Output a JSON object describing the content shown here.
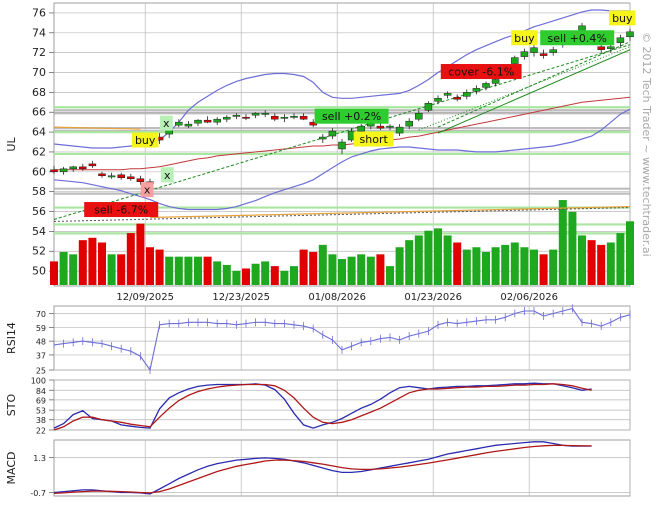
{
  "watermark": "© 2012 Tech Trader ~ www.techtrader.ai",
  "colors": {
    "up": "#1fa81f",
    "down": "#e00000",
    "grid": "#b8b8b8",
    "bollinger": "#6e6ed8",
    "ma_red": "#c23a3a",
    "ma_orange": "#e5a23a",
    "trend_green": "#1b8a1b",
    "support_green": "#a9e6a0",
    "resistance_gray": "#a8a8a8",
    "tag_red": "#e81010",
    "tag_green": "#2ecc2e",
    "tag_yellow": "#f5f51c",
    "tag_pink": "#f5a0a0",
    "tag_lightgreen": "#b8f0b8",
    "line_blue": "#2b2bb0",
    "line_red": "#b01818"
  },
  "chart_data": [
    {
      "type": "candlestick",
      "ylabel": "UL",
      "ylim": [
        48.5,
        77
      ],
      "yticks": [
        50,
        52,
        54,
        56,
        58,
        60,
        62,
        64,
        66,
        68,
        70,
        72,
        74,
        76
      ],
      "xlim": [
        0,
        60
      ],
      "x_tick_positions": [
        9.5,
        19.5,
        29.5,
        39.5,
        49.5,
        60
      ],
      "date_labels": [
        {
          "label": "12/09/2025",
          "x": 9.5
        },
        {
          "label": "12/23/2025",
          "x": 19.5
        },
        {
          "label": "01/08/2026",
          "x": 29.5
        },
        {
          "label": "01/23/2026",
          "x": 39.5
        },
        {
          "label": "02/06/2026",
          "x": 49.5
        }
      ],
      "ohlc": [
        [
          60.2,
          60.6,
          59.8,
          60.0
        ],
        [
          60.0,
          60.5,
          59.7,
          60.3
        ],
        [
          60.3,
          60.6,
          60.0,
          60.5
        ],
        [
          60.5,
          60.8,
          60.1,
          60.3
        ],
        [
          60.8,
          61.1,
          60.4,
          60.6
        ],
        [
          59.8,
          60.0,
          59.4,
          59.6
        ],
        [
          59.6,
          59.9,
          59.3,
          59.6
        ],
        [
          59.7,
          59.9,
          59.2,
          59.4
        ],
        [
          59.5,
          59.8,
          59.1,
          59.3
        ],
        [
          59.3,
          59.6,
          58.7,
          59.0
        ],
        [
          59.0,
          59.3,
          58.5,
          58.8
        ],
        [
          63.5,
          63.9,
          62.8,
          63.2
        ],
        [
          63.8,
          64.6,
          63.4,
          64.2
        ],
        [
          64.7,
          65.3,
          64.5,
          65.0
        ],
        [
          64.6,
          65.1,
          64.4,
          64.8
        ],
        [
          64.9,
          65.3,
          64.6,
          65.2
        ],
        [
          65.2,
          65.6,
          64.9,
          65.0
        ],
        [
          65.0,
          65.5,
          64.7,
          65.3
        ],
        [
          65.3,
          65.7,
          65.0,
          65.5
        ],
        [
          65.6,
          65.9,
          65.3,
          65.7
        ],
        [
          65.5,
          65.8,
          65.2,
          65.4
        ],
        [
          65.7,
          66.0,
          65.4,
          65.9
        ],
        [
          65.8,
          66.2,
          65.5,
          65.9
        ],
        [
          65.6,
          65.9,
          65.1,
          65.3
        ],
        [
          65.4,
          65.8,
          65.0,
          65.5
        ],
        [
          65.5,
          65.9,
          65.3,
          65.6
        ],
        [
          65.6,
          65.9,
          65.2,
          65.3
        ],
        [
          65.0,
          65.3,
          64.5,
          64.7
        ],
        [
          63.3,
          63.8,
          62.9,
          63.5
        ],
        [
          63.6,
          64.4,
          63.3,
          64.1
        ],
        [
          62.3,
          63.3,
          61.8,
          63.0
        ],
        [
          63.2,
          64.4,
          63.0,
          64.1
        ],
        [
          64.1,
          64.8,
          63.9,
          64.6
        ],
        [
          64.6,
          65.1,
          64.3,
          64.9
        ],
        [
          64.6,
          64.9,
          64.2,
          64.4
        ],
        [
          64.5,
          64.8,
          64.2,
          64.6
        ],
        [
          63.9,
          64.8,
          63.6,
          64.5
        ],
        [
          64.6,
          65.4,
          64.3,
          65.1
        ],
        [
          65.3,
          66.2,
          65.1,
          65.9
        ],
        [
          66.2,
          67.1,
          66.0,
          66.9
        ],
        [
          67.1,
          67.7,
          66.8,
          67.4
        ],
        [
          67.7,
          68.1,
          67.4,
          67.9
        ],
        [
          67.5,
          67.8,
          67.1,
          67.3
        ],
        [
          67.6,
          68.3,
          67.3,
          68.0
        ],
        [
          68.1,
          68.7,
          67.8,
          68.4
        ],
        [
          68.5,
          69.1,
          68.2,
          68.9
        ],
        [
          68.9,
          69.5,
          68.6,
          69.3
        ],
        [
          69.7,
          70.6,
          69.4,
          70.3
        ],
        [
          70.9,
          71.7,
          70.5,
          71.5
        ],
        [
          71.6,
          72.4,
          71.3,
          72.1
        ],
        [
          72.0,
          72.8,
          71.6,
          72.5
        ],
        [
          71.9,
          72.3,
          71.4,
          71.7
        ],
        [
          72.0,
          72.6,
          71.7,
          72.3
        ],
        [
          72.8,
          73.6,
          72.5,
          73.3
        ],
        [
          73.3,
          74.2,
          72.9,
          73.9
        ],
        [
          74.1,
          75.0,
          73.8,
          74.7
        ],
        [
          73.6,
          74.0,
          72.9,
          73.2
        ],
        [
          72.6,
          72.9,
          72.0,
          72.3
        ],
        [
          72.4,
          72.9,
          72.0,
          72.6
        ],
        [
          73.0,
          73.8,
          72.6,
          73.5
        ],
        [
          73.6,
          74.4,
          73.2,
          74.1
        ]
      ],
      "volume": [
        0.2,
        0.28,
        0.26,
        0.38,
        0.4,
        0.36,
        0.26,
        0.26,
        0.44,
        0.52,
        0.32,
        0.3,
        0.24,
        0.24,
        0.24,
        0.24,
        0.24,
        0.2,
        0.17,
        0.12,
        0.14,
        0.18,
        0.2,
        0.16,
        0.12,
        0.16,
        0.3,
        0.28,
        0.34,
        0.26,
        0.22,
        0.24,
        0.26,
        0.24,
        0.26,
        0.16,
        0.32,
        0.38,
        0.42,
        0.46,
        0.48,
        0.42,
        0.36,
        0.3,
        0.32,
        0.28,
        0.32,
        0.34,
        0.36,
        0.32,
        0.3,
        0.26,
        0.3,
        0.72,
        0.62,
        0.42,
        0.38,
        0.34,
        0.36,
        0.44,
        0.54
      ],
      "bollinger_upper": [
        62.8,
        62.7,
        62.6,
        62.5,
        62.4,
        62.4,
        62.4,
        62.5,
        62.6,
        62.7,
        62.6,
        63.2,
        64.0,
        65.0,
        66.2,
        67.0,
        67.6,
        68.2,
        68.7,
        69.1,
        69.4,
        69.6,
        69.8,
        69.9,
        69.9,
        69.8,
        69.6,
        69.0,
        68.0,
        67.5,
        67.4,
        67.4,
        67.5,
        67.6,
        67.7,
        67.8,
        67.9,
        68.2,
        68.7,
        69.3,
        70.0,
        70.6,
        71.2,
        71.8,
        72.3,
        72.7,
        73.1,
        73.5,
        73.8,
        74.2,
        74.6,
        74.9,
        75.2,
        75.5,
        75.8,
        76.1,
        76.3,
        76.3,
        76.2,
        76.2,
        76.2
      ],
      "bollinger_lower": [
        59.2,
        59.1,
        59.0,
        58.9,
        58.7,
        58.5,
        58.3,
        58.1,
        57.8,
        57.5,
        57.2,
        56.8,
        56.5,
        56.3,
        56.2,
        56.2,
        56.2,
        56.2,
        56.3,
        56.5,
        56.8,
        57.1,
        57.5,
        57.9,
        58.2,
        58.5,
        58.8,
        59.2,
        59.8,
        60.4,
        61.0,
        61.5,
        61.8,
        62.1,
        62.3,
        62.4,
        62.5,
        62.5,
        62.4,
        62.3,
        62.2,
        62.2,
        62.2,
        62.1,
        62.0,
        62.0,
        62.0,
        62.1,
        62.2,
        62.3,
        62.4,
        62.5,
        62.6,
        62.8,
        63.0,
        63.3,
        63.6,
        64.2,
        65.0,
        65.8,
        66.3
      ],
      "ma_red": [
        60.2,
        60.2,
        60.2,
        60.2,
        60.2,
        60.2,
        60.2,
        60.2,
        60.3,
        60.3,
        60.4,
        60.5,
        60.7,
        60.9,
        61.1,
        61.3,
        61.4,
        61.6,
        61.7,
        61.8,
        61.9,
        62.0,
        62.1,
        62.2,
        62.3,
        62.4,
        62.5,
        62.6,
        62.6,
        62.7,
        62.7,
        62.8,
        62.9,
        63.0,
        63.1,
        63.2,
        63.3,
        63.5,
        63.6,
        63.8,
        64.0,
        64.2,
        64.4,
        64.6,
        64.8,
        65.0,
        65.2,
        65.4,
        65.6,
        65.8,
        66.0,
        66.2,
        66.4,
        66.6,
        66.8,
        67.0,
        67.1,
        67.2,
        67.3,
        67.4,
        67.5
      ],
      "trend_lines": [
        {
          "x1": 0,
          "y1": 55.2,
          "x2": 60,
          "y2": 72.8,
          "style": "dashed"
        },
        {
          "x1": 40,
          "y1": 64.5,
          "x2": 60,
          "y2": 73.1,
          "style": "dashed"
        },
        {
          "x1": 40,
          "y1": 63.9,
          "x2": 60,
          "y2": 72.3,
          "style": "solid"
        },
        {
          "x1": 38,
          "y1": 64.2,
          "x2": 60,
          "y2": 72.6,
          "style": "dotted"
        },
        {
          "x1": 0,
          "y1": 55.0,
          "x2": 60,
          "y2": 56.4,
          "style": "dashed_gray"
        }
      ],
      "ma_orange_segments": [
        {
          "x1": 0,
          "y1": 64.5,
          "x2": 9,
          "y2": 64.3
        },
        {
          "x1": 10,
          "y1": 55.4,
          "x2": 60,
          "y2": 56.5
        }
      ],
      "support_levels": [
        53.8,
        54.7,
        56.4,
        61.8,
        64.0,
        66.5
      ],
      "resistance_levels": [
        57.8,
        58.3,
        64.1,
        64.4,
        65.9,
        66.2
      ],
      "annotations": [
        {
          "text": "buy",
          "x": 9.5,
          "y": 63.2,
          "kind": "yellow"
        },
        {
          "text": "x",
          "x": 11.7,
          "y": 64.9,
          "kind": "lightgreen"
        },
        {
          "text": "x",
          "x": 9.7,
          "y": 58.2,
          "kind": "pink"
        },
        {
          "text": "x",
          "x": 11.8,
          "y": 59.7,
          "kind": "lightgreen"
        },
        {
          "text": "sell -6.7%",
          "x": 7.0,
          "y": 56.2,
          "kind": "red"
        },
        {
          "text": "sell +0.2%",
          "x": 31.0,
          "y": 65.6,
          "kind": "green"
        },
        {
          "text": "short",
          "x": 33.3,
          "y": 63.3,
          "kind": "yellow"
        },
        {
          "text": "cover -6.1%",
          "x": 44.5,
          "y": 70.1,
          "kind": "red"
        },
        {
          "text": "buy",
          "x": 49.0,
          "y": 73.5,
          "kind": "yellow"
        },
        {
          "text": "sell +0.4%",
          "x": 54.5,
          "y": 73.5,
          "kind": "green"
        },
        {
          "text": "buy",
          "x": 59.2,
          "y": 75.5,
          "kind": "yellow"
        }
      ]
    },
    {
      "type": "line",
      "ylabel": "RSI14",
      "ylim": [
        25,
        76
      ],
      "yticks": [
        25,
        37,
        48,
        59,
        70
      ],
      "values": [
        45,
        46,
        47,
        48,
        47,
        46,
        44,
        42,
        40,
        36,
        25,
        61,
        62,
        62,
        63,
        63,
        63,
        62,
        62,
        61,
        62,
        63,
        63,
        62,
        62,
        61,
        60,
        58,
        53,
        49,
        41,
        44,
        47,
        48,
        50,
        51,
        49,
        52,
        54,
        56,
        61,
        63,
        62,
        63,
        64,
        65,
        65,
        67,
        70,
        72,
        72,
        68,
        70,
        72,
        74,
        63,
        62,
        60,
        63,
        67,
        69
      ]
    },
    {
      "type": "line",
      "ylabel": "STO",
      "ylim": [
        22,
        100
      ],
      "yticks": [
        22,
        38,
        53,
        69,
        84,
        100
      ],
      "series": [
        {
          "color_key": "line_blue",
          "values": [
            25,
            32,
            46,
            52,
            40,
            38,
            36,
            30,
            28,
            26,
            25,
            55,
            72,
            80,
            86,
            90,
            92,
            93,
            93,
            93,
            93,
            94,
            92,
            85,
            70,
            48,
            30,
            25,
            30,
            34,
            40,
            48,
            56,
            62,
            70,
            80,
            88,
            90,
            88,
            86,
            88,
            89,
            90,
            90,
            91,
            91,
            92,
            93,
            94,
            94,
            95,
            94,
            94,
            91,
            88,
            84,
            86
          ]
        },
        {
          "color_key": "line_red",
          "values": [
            22,
            27,
            36,
            42,
            42,
            38,
            36,
            34,
            31,
            29,
            27,
            42,
            56,
            68,
            76,
            82,
            86,
            89,
            91,
            92,
            93,
            93,
            93,
            91,
            84,
            72,
            56,
            42,
            34,
            32,
            34,
            38,
            44,
            50,
            56,
            64,
            72,
            80,
            84,
            86,
            86,
            87,
            88,
            89,
            89,
            90,
            90,
            91,
            92,
            92,
            93,
            93,
            94,
            93,
            91,
            87,
            84
          ]
        }
      ]
    },
    {
      "type": "line",
      "ylabel": "MACD",
      "ylim": [
        -0.9,
        2.3
      ],
      "yticks": [
        -0.7,
        1.3
      ],
      "series": [
        {
          "color_key": "line_blue",
          "values": [
            -0.7,
            -0.65,
            -0.6,
            -0.55,
            -0.55,
            -0.6,
            -0.65,
            -0.7,
            -0.7,
            -0.72,
            -0.78,
            -0.5,
            -0.2,
            0.1,
            0.35,
            0.6,
            0.8,
            0.95,
            1.05,
            1.15,
            1.2,
            1.25,
            1.28,
            1.25,
            1.2,
            1.1,
            1.0,
            0.85,
            0.7,
            0.55,
            0.45,
            0.45,
            0.5,
            0.6,
            0.7,
            0.8,
            0.9,
            1.0,
            1.1,
            1.2,
            1.35,
            1.5,
            1.6,
            1.7,
            1.8,
            1.9,
            2.0,
            2.05,
            2.1,
            2.15,
            2.2,
            2.2,
            2.1,
            2.0,
            1.95,
            1.95,
            1.95
          ]
        },
        {
          "color_key": "line_red",
          "values": [
            -0.75,
            -0.72,
            -0.68,
            -0.65,
            -0.62,
            -0.62,
            -0.63,
            -0.65,
            -0.67,
            -0.7,
            -0.72,
            -0.65,
            -0.5,
            -0.3,
            -0.1,
            0.1,
            0.3,
            0.5,
            0.65,
            0.8,
            0.9,
            1.0,
            1.1,
            1.15,
            1.15,
            1.12,
            1.08,
            1.0,
            0.92,
            0.82,
            0.72,
            0.65,
            0.62,
            0.62,
            0.65,
            0.7,
            0.75,
            0.82,
            0.9,
            0.98,
            1.07,
            1.16,
            1.26,
            1.36,
            1.46,
            1.56,
            1.65,
            1.72,
            1.8,
            1.87,
            1.93,
            1.97,
            1.99,
            1.99,
            1.98,
            1.97,
            1.96
          ]
        }
      ]
    }
  ]
}
